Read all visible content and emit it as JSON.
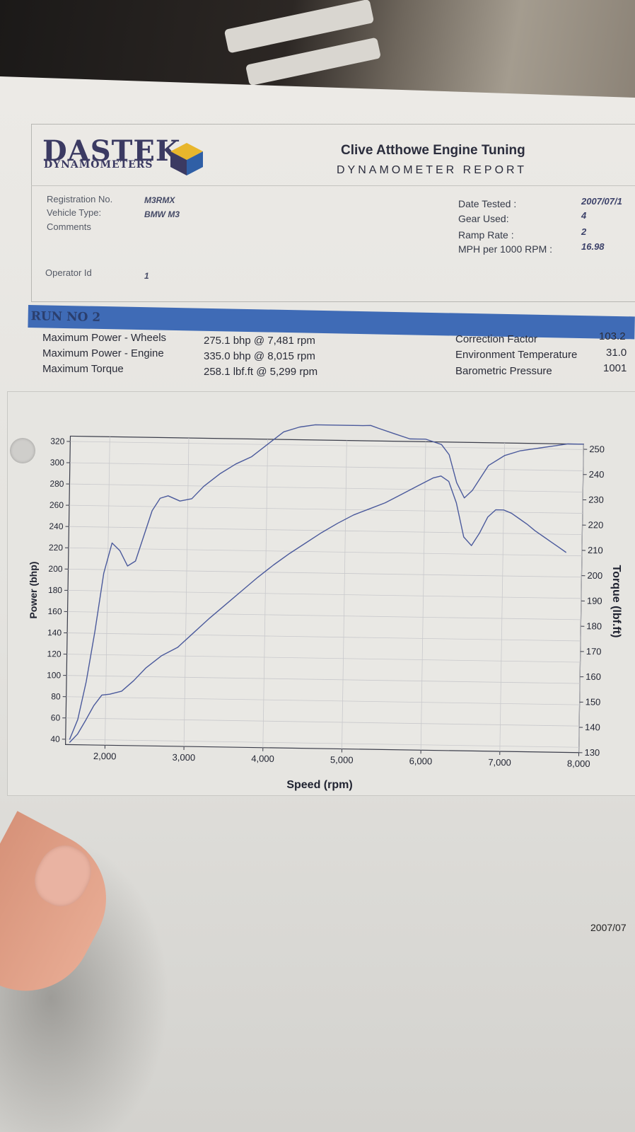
{
  "header": {
    "logo_main": "DASTEK",
    "logo_sub": "DYNAMOMETERS",
    "company": "Clive Atthowe Engine Tuning",
    "report_title": "DYNAMOMETER REPORT"
  },
  "vehicle": {
    "registration_label": "Registration No.",
    "registration": "M3RMX",
    "type_label": "Vehicle Type:",
    "type": "BMW M3",
    "comments_label": "Comments",
    "operator_label": "Operator Id",
    "operator": "1"
  },
  "test": {
    "date_label": "Date Tested :",
    "date": "2007/07/1",
    "gear_label": "Gear Used:",
    "gear": "4",
    "ramp_label": "Ramp Rate :",
    "ramp": "2",
    "mph_label": "MPH per 1000 RPM :",
    "mph": "16.98"
  },
  "run": {
    "label": "RUN NO 2"
  },
  "summary": {
    "wheels_label": "Maximum Power - Wheels",
    "wheels_value": "275.1 bhp @ 7,481 rpm",
    "engine_label": "Maximum Power - Engine",
    "engine_value": "335.0 bhp @ 8,015 rpm",
    "torque_label": "Maximum Torque",
    "torque_value": "258.1 lbf.ft @ 5,299 rpm",
    "correction_label": "Correction Factor",
    "correction_value": "103.2",
    "env_label": "Environment Temperature",
    "env_value": "31.0",
    "baro_label": "Barometric Pressure",
    "baro_value": "1001"
  },
  "footer": {
    "date": "2007/07"
  },
  "chart_data": {
    "type": "line",
    "xlabel": "Speed (rpm)",
    "ylabel": "Power (bhp)",
    "y2label": "Torque (lbf.ft)",
    "xlim": [
      1500,
      8000
    ],
    "ylim": [
      35,
      325
    ],
    "y2lim": [
      130,
      252
    ],
    "x_ticks": [
      2000,
      3000,
      4000,
      5000,
      6000,
      7000,
      8000
    ],
    "x_tick_labels": [
      "2,000",
      "3,000",
      "4,000",
      "5,000",
      "6,000",
      "7,000",
      "8,000"
    ],
    "y_ticks": [
      40,
      60,
      80,
      100,
      120,
      140,
      160,
      180,
      200,
      220,
      240,
      260,
      280,
      300,
      320
    ],
    "y2_ticks": [
      130,
      140,
      150,
      160,
      170,
      180,
      190,
      200,
      210,
      220,
      230,
      240,
      250
    ],
    "grid": true,
    "series": [
      {
        "axis": "left",
        "x": [
          1550,
          1650,
          1750,
          1850,
          1950,
          2050,
          2200,
          2350,
          2500,
          2700,
          2900,
          3100,
          3300,
          3500,
          3700,
          3900,
          4100,
          4300,
          4500,
          4700,
          4900,
          5100,
          5300,
          5500,
          5700,
          5900,
          6100,
          6200,
          6300,
          6400,
          6500,
          6600,
          6700,
          6800,
          6900,
          7000,
          7100,
          7200,
          7300,
          7400,
          7500,
          7600,
          7700,
          7800
        ],
        "y": [
          37,
          45,
          58,
          72,
          82,
          83,
          86,
          96,
          108,
          120,
          128,
          142,
          156,
          169,
          182,
          195,
          207,
          218,
          228,
          238,
          247,
          255,
          261,
          267,
          275,
          283,
          291,
          293,
          288,
          268,
          236,
          228,
          240,
          255,
          262,
          262,
          259,
          254,
          249,
          243,
          238,
          233,
          228,
          223
        ]
      },
      {
        "axis": "right",
        "x": [
          1550,
          1650,
          1750,
          1850,
          1950,
          2050,
          2150,
          2250,
          2350,
          2450,
          2550,
          2650,
          2750,
          2900,
          3050,
          3200,
          3400,
          3600,
          3800,
          4000,
          4200,
          4400,
          4600,
          4800,
          5000,
          5200,
          5300,
          5400,
          5600,
          5800,
          5900,
          6000,
          6100,
          6200,
          6300,
          6400,
          6500,
          6600,
          6700,
          6800,
          7000,
          7200,
          7400,
          7600,
          7800,
          8000
        ],
        "y": [
          132,
          140,
          155,
          175,
          198,
          210,
          207,
          201,
          203,
          213,
          223,
          228,
          229,
          227,
          228,
          233,
          238,
          242,
          245,
          250,
          255,
          257,
          258,
          258,
          258,
          258,
          258.1,
          257,
          255,
          253,
          253,
          253,
          252,
          251,
          247,
          236,
          230,
          233,
          238,
          243,
          247,
          249,
          250,
          251,
          252,
          252
        ]
      }
    ]
  }
}
